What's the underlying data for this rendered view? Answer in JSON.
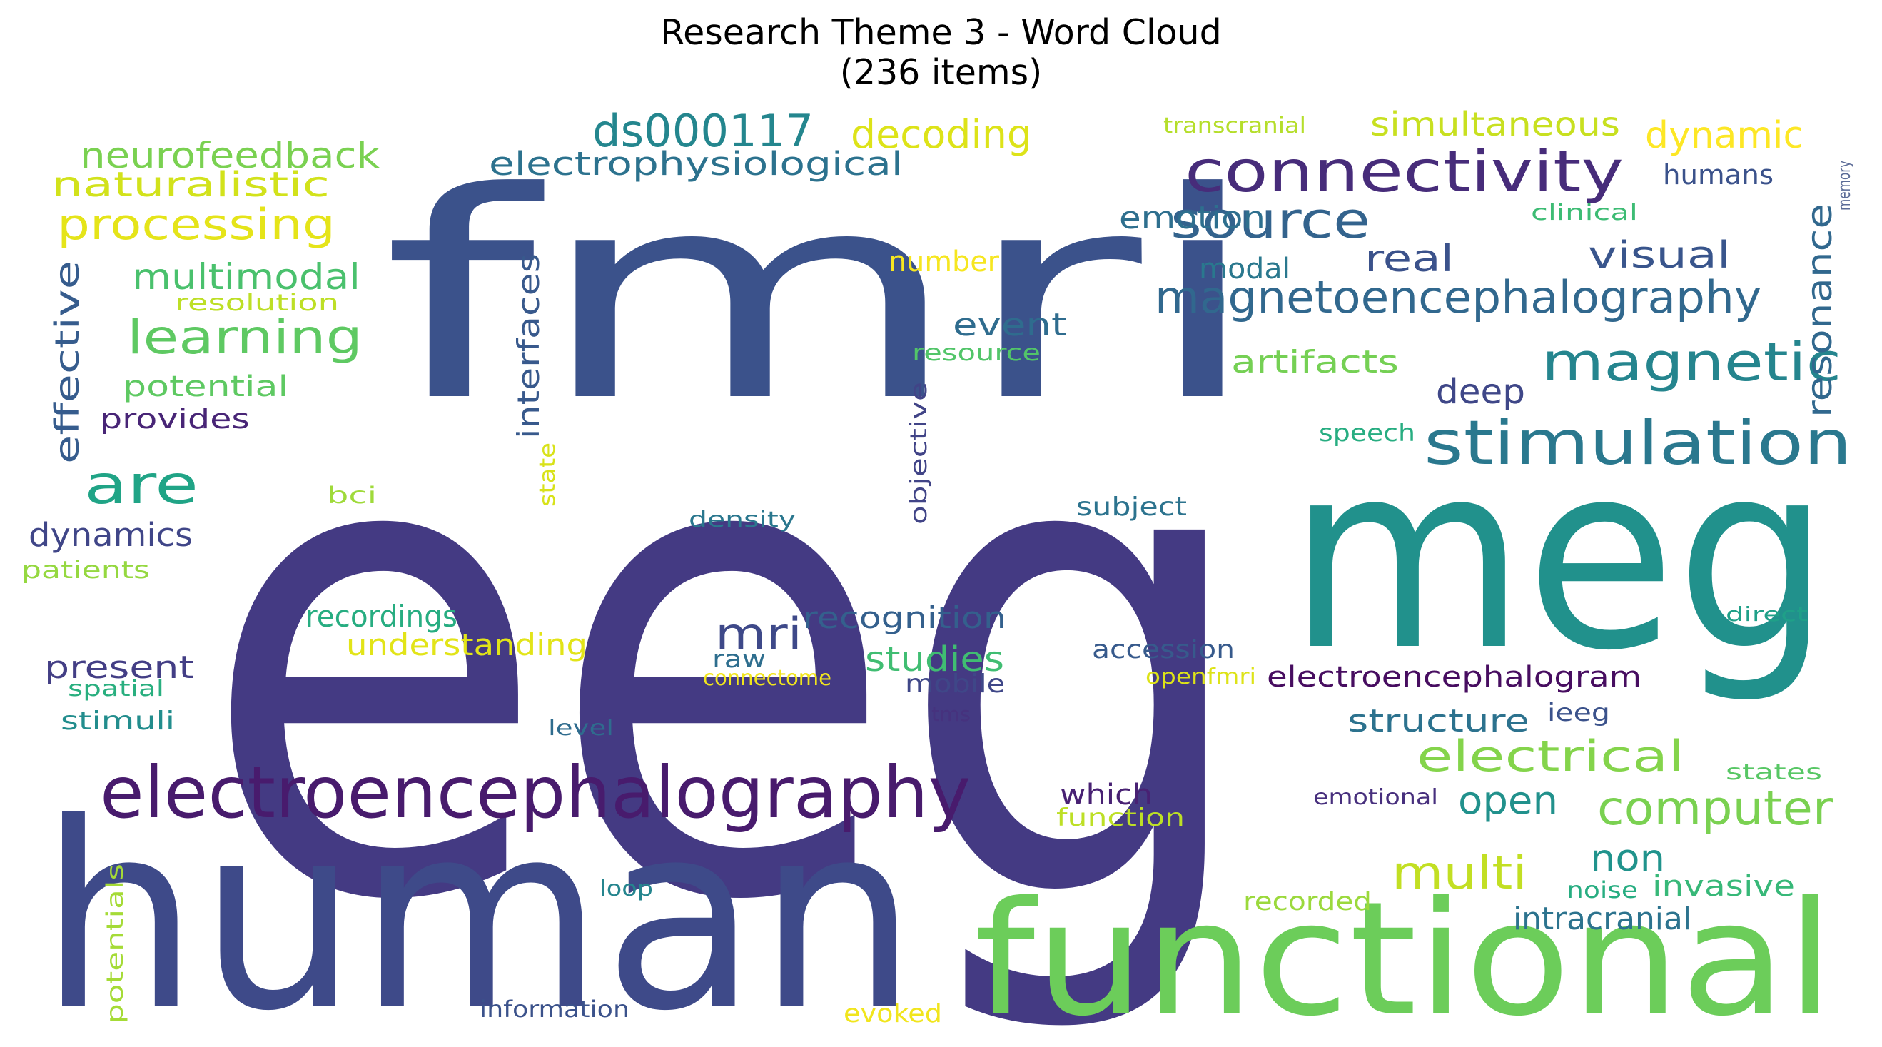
{
  "figure": {
    "title_line1": "Research Theme 3 - Word Cloud",
    "title_line2": "(236 items)"
  },
  "words": [
    {
      "text": "eeg",
      "color": "#443a83"
    },
    {
      "text": "fmri",
      "color": "#3b528b"
    },
    {
      "text": "meg",
      "color": "#21918c"
    },
    {
      "text": "human",
      "color": "#3e4a89"
    },
    {
      "text": "functional",
      "color": "#6ccd5a"
    },
    {
      "text": "electroencephalography",
      "color": "#481b6d"
    },
    {
      "text": "connectivity",
      "color": "#472c7a"
    },
    {
      "text": "stimulation",
      "color": "#2a788e"
    },
    {
      "text": "magnetoencephalography",
      "color": "#31688e"
    },
    {
      "text": "magnetic",
      "color": "#25858e"
    },
    {
      "text": "source",
      "color": "#33638d"
    },
    {
      "text": "ds000117",
      "color": "#24868e"
    },
    {
      "text": "decoding",
      "color": "#dde318"
    },
    {
      "text": "simultaneous",
      "color": "#c8e020"
    },
    {
      "text": "dynamic",
      "color": "#fde725"
    },
    {
      "text": "transcranial",
      "color": "#b5de2b"
    },
    {
      "text": "neurofeedback",
      "color": "#7ad151"
    },
    {
      "text": "naturalistic",
      "color": "#d2e21b"
    },
    {
      "text": "processing",
      "color": "#e5e419"
    },
    {
      "text": "electrophysiological",
      "color": "#2c728e"
    },
    {
      "text": "learning",
      "color": "#5ec962"
    },
    {
      "text": "multimodal",
      "color": "#4ac16d"
    },
    {
      "text": "resolution",
      "color": "#bddf26"
    },
    {
      "text": "are",
      "color": "#20a486"
    },
    {
      "text": "effective",
      "color": "#365c8d"
    },
    {
      "text": "potential",
      "color": "#5ec962"
    },
    {
      "text": "provides",
      "color": "#482576"
    },
    {
      "text": "dynamics",
      "color": "#404688"
    },
    {
      "text": "patients",
      "color": "#95d840"
    },
    {
      "text": "interfaces",
      "color": "#38598c"
    },
    {
      "text": "state",
      "color": "#d8e219"
    },
    {
      "text": "bci",
      "color": "#9fda3a"
    },
    {
      "text": "density",
      "color": "#2a778e"
    },
    {
      "text": "objective",
      "color": "#414487"
    },
    {
      "text": "number",
      "color": "#f6e620"
    },
    {
      "text": "event",
      "color": "#2f6c8e"
    },
    {
      "text": "resource",
      "color": "#52c569"
    },
    {
      "text": "recordings",
      "color": "#27ad81"
    },
    {
      "text": "understanding",
      "color": "#e2e418"
    },
    {
      "text": "present",
      "color": "#433e85"
    },
    {
      "text": "spatial",
      "color": "#29af7f"
    },
    {
      "text": "stimuli",
      "color": "#228d8d"
    },
    {
      "text": "level",
      "color": "#2f6c8e"
    },
    {
      "text": "mri",
      "color": "#3e4989"
    },
    {
      "text": "recognition",
      "color": "#34608d"
    },
    {
      "text": "raw",
      "color": "#2e6e8e"
    },
    {
      "text": "connectome",
      "color": "#f1e51d"
    },
    {
      "text": "studies",
      "color": "#40bd72"
    },
    {
      "text": "mobile",
      "color": "#3f4788"
    },
    {
      "text": "tms",
      "color": "#46327e"
    },
    {
      "text": "emotion",
      "color": "#2e6f8e"
    },
    {
      "text": "clinical",
      "color": "#3dbc74"
    },
    {
      "text": "modal",
      "color": "#2a788e"
    },
    {
      "text": "real",
      "color": "#3b528b"
    },
    {
      "text": "visual",
      "color": "#39558c"
    },
    {
      "text": "humans",
      "color": "#3b528b"
    },
    {
      "text": "memory",
      "color": "#5b6b97"
    },
    {
      "text": "resonance",
      "color": "#31688e"
    },
    {
      "text": "artifacts",
      "color": "#75d054"
    },
    {
      "text": "deep",
      "color": "#3f4788"
    },
    {
      "text": "speech",
      "color": "#27ad81"
    },
    {
      "text": "subject",
      "color": "#2c738e"
    },
    {
      "text": "accession",
      "color": "#375a8c"
    },
    {
      "text": "openfmri",
      "color": "#dde318"
    },
    {
      "text": "electroencephalogram",
      "color": "#470d60"
    },
    {
      "text": "structure",
      "color": "#2c728e"
    },
    {
      "text": "ieeg",
      "color": "#3b528b"
    },
    {
      "text": "electrical",
      "color": "#84d44b"
    },
    {
      "text": "states",
      "color": "#58c765"
    },
    {
      "text": "open",
      "color": "#21918c"
    },
    {
      "text": "computer",
      "color": "#7ad151"
    },
    {
      "text": "emotional",
      "color": "#472f7d"
    },
    {
      "text": "which",
      "color": "#482173"
    },
    {
      "text": "function",
      "color": "#bddf26"
    },
    {
      "text": "multi",
      "color": "#c2df23"
    },
    {
      "text": "non",
      "color": "#20938c"
    },
    {
      "text": "invasive",
      "color": "#37b878"
    },
    {
      "text": "noise",
      "color": "#27ad81"
    },
    {
      "text": "intracranial",
      "color": "#2c738e"
    },
    {
      "text": "recorded",
      "color": "#9bd93c"
    },
    {
      "text": "direct",
      "color": "#1fa088"
    },
    {
      "text": "loop",
      "color": "#25858e"
    },
    {
      "text": "potentials",
      "color": "#a5db36"
    },
    {
      "text": "information",
      "color": "#3b528b"
    },
    {
      "text": "evoked",
      "color": "#f1e51d"
    }
  ]
}
